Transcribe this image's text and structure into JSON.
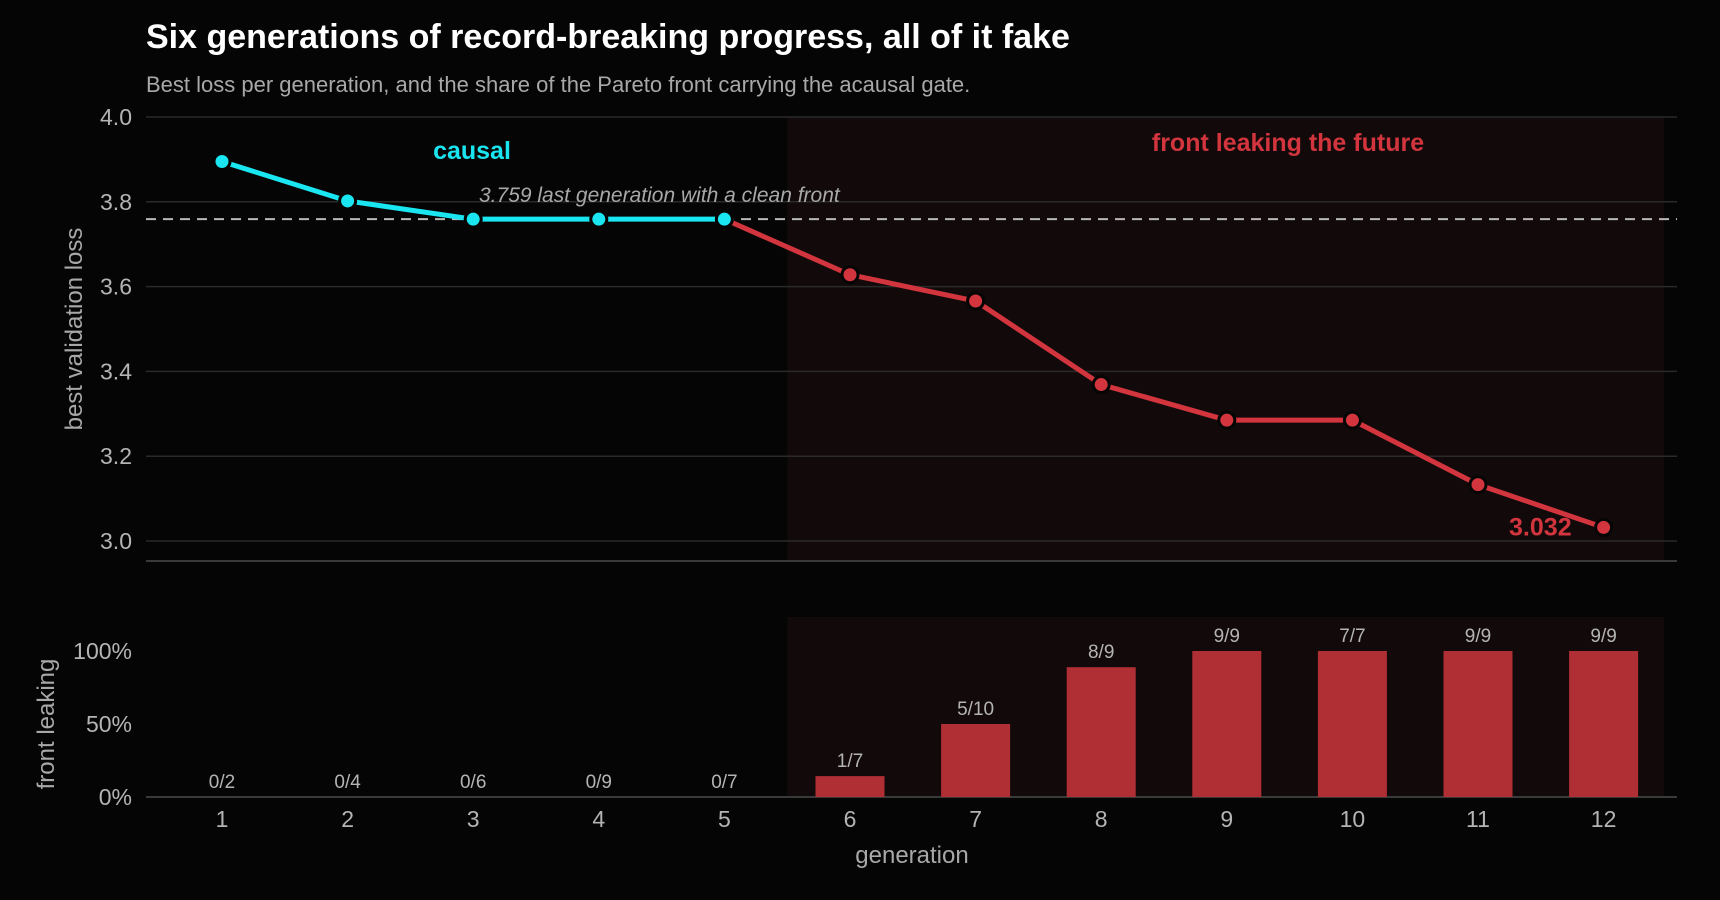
{
  "chart_data": {
    "type": "line",
    "title": "Six generations of record-breaking progress, all of it fake",
    "subtitle": "Best loss per generation, and the share of the Pareto front carrying the acausal gate.",
    "x": [
      1,
      2,
      3,
      4,
      5,
      6,
      7,
      8,
      9,
      10,
      11,
      12
    ],
    "xlabel": "generation",
    "colors": {
      "causal": "#19e6f0",
      "leak": "#d2353d",
      "bar": "#b02f35",
      "shade": "#120a0a",
      "ref": "#b8b8b8",
      "background": "#050505"
    },
    "top": {
      "ylabel": "best validation loss",
      "ylim": [
        2.95,
        4.0
      ],
      "yticks": [
        "4.0",
        "3.8",
        "3.6",
        "3.4",
        "3.2",
        "3.0"
      ],
      "series": [
        {
          "name": "causal",
          "values": [
            3.895,
            3.802,
            3.759,
            3.759,
            3.759,
            null,
            null,
            null,
            null,
            null,
            null,
            null
          ]
        },
        {
          "name": "front leaking the future",
          "values": [
            null,
            null,
            null,
            null,
            3.759,
            3.628,
            3.566,
            3.369,
            3.285,
            3.285,
            3.133,
            3.032
          ]
        }
      ],
      "reference_line": {
        "value": 3.759,
        "label": "3.759  last generation with a clean front"
      },
      "end_label": "3.032"
    },
    "bottom": {
      "type": "bar",
      "ylabel": "front leaking",
      "ylim": [
        0,
        100
      ],
      "yticks": [
        "100%",
        "50%",
        "0%"
      ],
      "values_pct": [
        0,
        0,
        0,
        0,
        0,
        14.3,
        50,
        88.9,
        100,
        100,
        100,
        100
      ],
      "labels": [
        "0/2",
        "0/4",
        "0/6",
        "0/9",
        "0/7",
        "1/7",
        "5/10",
        "8/9",
        "9/9",
        "7/7",
        "9/9",
        "9/9"
      ]
    },
    "leak_region_start_generation": 6
  }
}
